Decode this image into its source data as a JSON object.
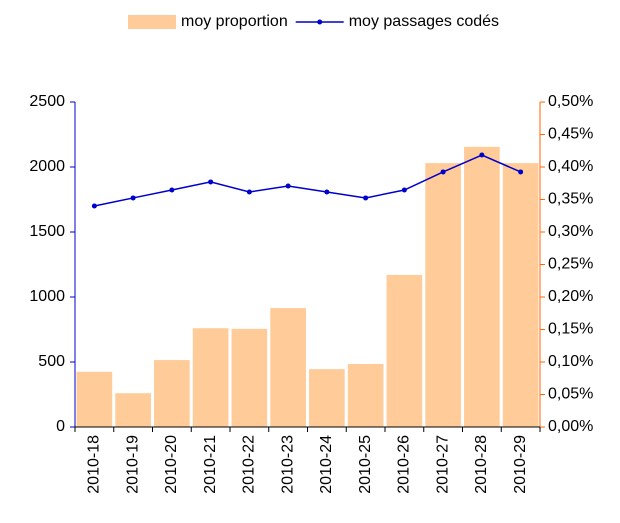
{
  "chart_data": {
    "type": "bar-line",
    "categories": [
      "2010-18",
      "2010-19",
      "2010-20",
      "2010-21",
      "2010-22",
      "2010-23",
      "2010-24",
      "2010-25",
      "2010-26",
      "2010-27",
      "2010-28",
      "2010-29"
    ],
    "series": [
      {
        "name": "moy proportion",
        "type": "bar",
        "axis": "y2",
        "color": "#ffcc99",
        "values": [
          0.085,
          0.052,
          0.103,
          0.152,
          0.151,
          0.183,
          0.089,
          0.097,
          0.234,
          0.406,
          0.431,
          0.406
        ]
      },
      {
        "name": "moy passages codés",
        "type": "line",
        "axis": "y",
        "color": "#0000cc",
        "values": [
          1700,
          1762,
          1823,
          1885,
          1808,
          1854,
          1808,
          1762,
          1823,
          1962,
          2092,
          1962
        ]
      }
    ],
    "ylim": [
      0,
      2500
    ],
    "yticks": [
      0,
      500,
      1000,
      1500,
      2000,
      2500
    ],
    "y_axis_color": "#0000cc",
    "y2lim": [
      0,
      0.5
    ],
    "y2ticks": [
      {
        "value": 0,
        "label": "0,00%"
      },
      {
        "value": 0.05,
        "label": "0,05%"
      },
      {
        "value": 0.1,
        "label": "0,10%"
      },
      {
        "value": 0.15,
        "label": "0,15%"
      },
      {
        "value": 0.2,
        "label": "0,20%"
      },
      {
        "value": 0.25,
        "label": "0,25%"
      },
      {
        "value": 0.3,
        "label": "0,30%"
      },
      {
        "value": 0.35,
        "label": "0,35%"
      },
      {
        "value": 0.4,
        "label": "0,40%"
      },
      {
        "value": 0.45,
        "label": "0,45%"
      },
      {
        "value": 0.5,
        "label": "0,50%"
      }
    ],
    "y2_axis_color": "#ff6600",
    "legend": "top"
  }
}
